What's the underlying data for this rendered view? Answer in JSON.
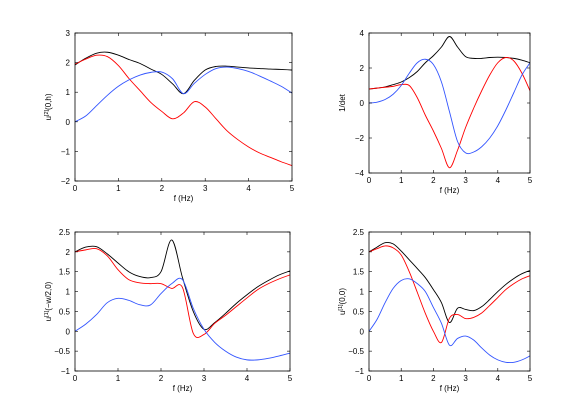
{
  "chart_data": [
    {
      "type": "line",
      "title": "",
      "xlabel": "f (Hz)",
      "ylabel": {
        "base": "u",
        "sup": "[2]",
        "rest": "(0,h)"
      },
      "xlim": [
        0,
        5
      ],
      "ylim": [
        -2,
        3
      ],
      "xticks": [
        0,
        1,
        2,
        3,
        4,
        5
      ],
      "yticks": [
        -2,
        -1,
        0,
        1,
        2,
        3
      ],
      "x": [
        0,
        0.25,
        0.5,
        0.75,
        1,
        1.25,
        1.5,
        1.75,
        2,
        2.25,
        2.5,
        2.75,
        3,
        3.25,
        3.5,
        3.75,
        4,
        4.25,
        4.5,
        4.75,
        5
      ],
      "series": [
        {
          "color": "#000000",
          "values": [
            1.92,
            2.15,
            2.32,
            2.35,
            2.25,
            2.1,
            1.97,
            1.78,
            1.6,
            1.28,
            0.95,
            1.4,
            1.75,
            1.87,
            1.88,
            1.85,
            1.82,
            1.8,
            1.78,
            1.77,
            1.75
          ]
        },
        {
          "color": "#ff0000",
          "values": [
            1.95,
            2.12,
            2.25,
            2.2,
            1.9,
            1.45,
            1.05,
            0.65,
            0.35,
            0.1,
            0.3,
            0.68,
            0.5,
            0.1,
            -0.3,
            -0.6,
            -0.85,
            -1.05,
            -1.2,
            -1.35,
            -1.48
          ]
        },
        {
          "color": "#3355ff",
          "values": [
            0.0,
            0.2,
            0.55,
            0.9,
            1.2,
            1.42,
            1.58,
            1.67,
            1.68,
            1.45,
            0.95,
            1.3,
            1.6,
            1.8,
            1.85,
            1.8,
            1.7,
            1.55,
            1.38,
            1.2,
            0.97
          ]
        }
      ]
    },
    {
      "type": "line",
      "title": "",
      "xlabel": "f (Hz)",
      "ylabel": {
        "base": "1/det",
        "sup": "",
        "rest": ""
      },
      "xlim": [
        0,
        5
      ],
      "ylim": [
        -4,
        4
      ],
      "xticks": [
        0,
        1,
        2,
        3,
        4,
        5
      ],
      "yticks": [
        -4,
        -2,
        0,
        2,
        4
      ],
      "x": [
        0,
        0.25,
        0.5,
        0.75,
        1,
        1.25,
        1.5,
        1.75,
        2,
        2.25,
        2.5,
        2.75,
        3,
        3.25,
        3.5,
        3.75,
        4,
        4.25,
        4.5,
        4.75,
        5
      ],
      "series": [
        {
          "color": "#000000",
          "values": [
            0.8,
            0.85,
            0.92,
            1.05,
            1.2,
            1.45,
            1.8,
            2.3,
            2.7,
            3.2,
            3.8,
            3.2,
            2.65,
            2.55,
            2.55,
            2.6,
            2.62,
            2.6,
            2.55,
            2.45,
            2.3
          ]
        },
        {
          "color": "#ff0000",
          "values": [
            0.8,
            0.85,
            0.9,
            0.95,
            1.05,
            1.0,
            0.3,
            -0.7,
            -1.6,
            -2.6,
            -3.7,
            -2.7,
            -1.4,
            -0.3,
            0.7,
            1.6,
            2.3,
            2.6,
            2.4,
            1.7,
            0.7
          ]
        },
        {
          "color": "#3355ff",
          "values": [
            0.0,
            0.05,
            0.2,
            0.5,
            1.0,
            1.7,
            2.3,
            2.5,
            2.2,
            1.2,
            -0.5,
            -2.2,
            -2.85,
            -2.8,
            -2.5,
            -2.0,
            -1.3,
            -0.4,
            0.6,
            1.6,
            2.3
          ]
        }
      ]
    },
    {
      "type": "line",
      "title": "",
      "xlabel": "f (Hz)",
      "ylabel": {
        "base": "u",
        "sup": "[1]",
        "rest": "(−w/2,0)"
      },
      "xlim": [
        0,
        5
      ],
      "ylim": [
        -1,
        2.5
      ],
      "xticks": [
        0,
        1,
        2,
        3,
        4,
        5
      ],
      "yticks": [
        -1,
        -0.5,
        0,
        0.5,
        1,
        1.5,
        2,
        2.5
      ],
      "x": [
        0,
        0.25,
        0.5,
        0.75,
        1,
        1.25,
        1.5,
        1.75,
        2,
        2.25,
        2.5,
        2.75,
        3,
        3.25,
        3.5,
        3.75,
        4,
        4.25,
        4.5,
        4.75,
        5
      ],
      "series": [
        {
          "color": "#000000",
          "values": [
            2.0,
            2.12,
            2.13,
            1.95,
            1.72,
            1.5,
            1.38,
            1.35,
            1.5,
            2.3,
            1.35,
            0.5,
            0.05,
            0.22,
            0.45,
            0.7,
            0.92,
            1.12,
            1.28,
            1.42,
            1.52
          ]
        },
        {
          "color": "#ff0000",
          "values": [
            2.0,
            2.05,
            2.08,
            1.9,
            1.55,
            1.3,
            1.22,
            1.2,
            1.2,
            1.08,
            1.1,
            -0.05,
            -0.08,
            0.2,
            0.4,
            0.62,
            0.84,
            1.05,
            1.2,
            1.32,
            1.42
          ]
        },
        {
          "color": "#3355ff",
          "values": [
            0.0,
            0.18,
            0.42,
            0.72,
            0.83,
            0.78,
            0.67,
            0.66,
            0.95,
            1.2,
            1.3,
            0.58,
            0.05,
            -0.28,
            -0.5,
            -0.65,
            -0.72,
            -0.72,
            -0.68,
            -0.62,
            -0.55
          ]
        }
      ]
    },
    {
      "type": "line",
      "title": "",
      "xlabel": "f (Hz)",
      "ylabel": {
        "base": "u",
        "sup": "[1]",
        "rest": "(0,0)"
      },
      "xlim": [
        0,
        5
      ],
      "ylim": [
        -1,
        2.5
      ],
      "xticks": [
        0,
        1,
        2,
        3,
        4,
        5
      ],
      "yticks": [
        -1,
        -0.5,
        0,
        0.5,
        1,
        1.5,
        2,
        2.5
      ],
      "x": [
        0,
        0.25,
        0.5,
        0.75,
        1,
        1.25,
        1.5,
        1.75,
        2,
        2.25,
        2.5,
        2.75,
        3,
        3.25,
        3.5,
        3.75,
        4,
        4.25,
        4.5,
        4.75,
        5
      ],
      "series": [
        {
          "color": "#000000",
          "values": [
            2.0,
            2.12,
            2.23,
            2.2,
            2.02,
            1.8,
            1.58,
            1.35,
            1.05,
            0.72,
            0.22,
            0.58,
            0.55,
            0.52,
            0.62,
            0.8,
            1.0,
            1.18,
            1.33,
            1.45,
            1.53
          ]
        },
        {
          "color": "#ff0000",
          "values": [
            2.0,
            2.08,
            2.15,
            2.1,
            1.92,
            1.5,
            0.98,
            0.45,
            0.0,
            -0.28,
            0.33,
            0.42,
            0.32,
            0.35,
            0.46,
            0.65,
            0.85,
            1.05,
            1.2,
            1.32,
            1.4
          ]
        },
        {
          "color": "#3355ff",
          "values": [
            0.0,
            0.3,
            0.72,
            1.08,
            1.28,
            1.32,
            1.2,
            1.0,
            0.6,
            0.2,
            -0.35,
            -0.18,
            -0.12,
            -0.22,
            -0.42,
            -0.6,
            -0.72,
            -0.78,
            -0.78,
            -0.72,
            -0.62
          ]
        }
      ]
    }
  ]
}
